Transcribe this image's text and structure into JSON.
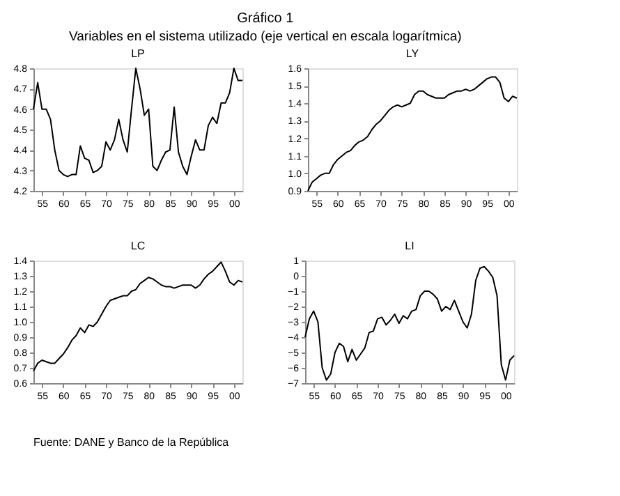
{
  "chart_data": [
    {
      "type": "other",
      "title": "Gráfico 1",
      "subtitle": "Variables en el sistema utilizado (eje vertical en escala logarítmica)"
    },
    {
      "type": "line",
      "title": "LP",
      "x": [
        1953,
        1954,
        1955,
        1956,
        1957,
        1958,
        1959,
        1960,
        1961,
        1962,
        1963,
        1964,
        1965,
        1966,
        1967,
        1968,
        1969,
        1970,
        1971,
        1972,
        1973,
        1974,
        1975,
        1976,
        1977,
        1978,
        1979,
        1980,
        1981,
        1982,
        1983,
        1984,
        1985,
        1986,
        1987,
        1988,
        1989,
        1990,
        1991,
        1992,
        1993,
        1994,
        1995,
        1996,
        1997,
        1998,
        1999,
        2000,
        2001,
        2002
      ],
      "series": [
        {
          "color": "#000000",
          "values": [
            4.6,
            4.73,
            4.6,
            4.6,
            4.55,
            4.4,
            4.3,
            4.28,
            4.27,
            4.28,
            4.28,
            4.42,
            4.36,
            4.35,
            4.29,
            4.3,
            4.32,
            4.44,
            4.4,
            4.45,
            4.55,
            4.45,
            4.39,
            4.6,
            4.8,
            4.7,
            4.57,
            4.6,
            4.32,
            4.3,
            4.35,
            4.39,
            4.4,
            4.61,
            4.39,
            4.32,
            4.28,
            4.37,
            4.45,
            4.4,
            4.4,
            4.52,
            4.56,
            4.53,
            4.63,
            4.63,
            4.68,
            4.8,
            4.74,
            4.74
          ]
        }
      ],
      "xlim": [
        1953,
        2002
      ],
      "xticks": [
        {
          "value": 1955,
          "label": "55"
        },
        {
          "value": 1960,
          "label": "60"
        },
        {
          "value": 1965,
          "label": "65"
        },
        {
          "value": 1970,
          "label": "70"
        },
        {
          "value": 1975,
          "label": "75"
        },
        {
          "value": 1980,
          "label": "80"
        },
        {
          "value": 1985,
          "label": "85"
        },
        {
          "value": 1990,
          "label": "90"
        },
        {
          "value": 1995,
          "label": "95"
        },
        {
          "value": 2000,
          "label": "00"
        }
      ],
      "ylim": [
        4.2,
        4.8
      ],
      "yticks": [
        4.2,
        4.3,
        4.4,
        4.5,
        4.6,
        4.7,
        4.8
      ],
      "grid": false
    },
    {
      "type": "line",
      "title": "LY",
      "x": [
        1953,
        1954,
        1955,
        1956,
        1957,
        1958,
        1959,
        1960,
        1961,
        1962,
        1963,
        1964,
        1965,
        1966,
        1967,
        1968,
        1969,
        1970,
        1971,
        1972,
        1973,
        1974,
        1975,
        1976,
        1977,
        1978,
        1979,
        1980,
        1981,
        1982,
        1983,
        1984,
        1985,
        1986,
        1987,
        1988,
        1989,
        1990,
        1991,
        1992,
        1993,
        1994,
        1995,
        1996,
        1997,
        1998,
        1999,
        2000,
        2001,
        2002
      ],
      "series": [
        {
          "color": "#000000",
          "values": [
            0.9,
            0.95,
            0.97,
            0.99,
            1.0,
            1.0,
            1.05,
            1.08,
            1.1,
            1.12,
            1.13,
            1.16,
            1.18,
            1.19,
            1.21,
            1.25,
            1.28,
            1.3,
            1.33,
            1.36,
            1.38,
            1.39,
            1.38,
            1.39,
            1.4,
            1.45,
            1.47,
            1.47,
            1.45,
            1.44,
            1.43,
            1.43,
            1.43,
            1.45,
            1.46,
            1.47,
            1.47,
            1.48,
            1.47,
            1.48,
            1.5,
            1.52,
            1.54,
            1.55,
            1.55,
            1.52,
            1.43,
            1.41,
            1.44,
            1.43
          ]
        }
      ],
      "xlim": [
        1953,
        2002
      ],
      "xticks": [
        {
          "value": 1955,
          "label": "55"
        },
        {
          "value": 1960,
          "label": "60"
        },
        {
          "value": 1965,
          "label": "65"
        },
        {
          "value": 1970,
          "label": "70"
        },
        {
          "value": 1975,
          "label": "75"
        },
        {
          "value": 1980,
          "label": "80"
        },
        {
          "value": 1985,
          "label": "85"
        },
        {
          "value": 1990,
          "label": "90"
        },
        {
          "value": 1995,
          "label": "95"
        },
        {
          "value": 2000,
          "label": "00"
        }
      ],
      "ylim": [
        0.9,
        1.6
      ],
      "yticks": [
        0.9,
        {
          "value": 1,
          "label": "1.0"
        },
        1.1,
        1.2,
        1.3,
        1.4,
        1.5,
        1.6
      ],
      "grid": false
    },
    {
      "type": "line",
      "title": "LC",
      "x": [
        1953,
        1954,
        1955,
        1956,
        1957,
        1958,
        1959,
        1960,
        1961,
        1962,
        1963,
        1964,
        1965,
        1966,
        1967,
        1968,
        1969,
        1970,
        1971,
        1972,
        1973,
        1974,
        1975,
        1976,
        1977,
        1978,
        1979,
        1980,
        1981,
        1982,
        1983,
        1984,
        1985,
        1986,
        1987,
        1988,
        1989,
        1990,
        1991,
        1992,
        1993,
        1994,
        1995,
        1996,
        1997,
        1998,
        1999,
        2000,
        2001,
        2002
      ],
      "series": [
        {
          "color": "#000000",
          "values": [
            0.68,
            0.73,
            0.75,
            0.74,
            0.73,
            0.73,
            0.76,
            0.79,
            0.83,
            0.88,
            0.91,
            0.96,
            0.93,
            0.98,
            0.97,
            1.0,
            1.05,
            1.1,
            1.14,
            1.15,
            1.16,
            1.17,
            1.17,
            1.2,
            1.21,
            1.25,
            1.27,
            1.29,
            1.28,
            1.26,
            1.24,
            1.23,
            1.23,
            1.22,
            1.23,
            1.24,
            1.24,
            1.24,
            1.22,
            1.24,
            1.28,
            1.31,
            1.33,
            1.36,
            1.39,
            1.33,
            1.26,
            1.24,
            1.27,
            1.26
          ]
        }
      ],
      "xlim": [
        1953,
        2002
      ],
      "xticks": [
        {
          "value": 1955,
          "label": "55"
        },
        {
          "value": 1960,
          "label": "60"
        },
        {
          "value": 1965,
          "label": "65"
        },
        {
          "value": 1970,
          "label": "70"
        },
        {
          "value": 1975,
          "label": "75"
        },
        {
          "value": 1980,
          "label": "80"
        },
        {
          "value": 1985,
          "label": "85"
        },
        {
          "value": 1990,
          "label": "90"
        },
        {
          "value": 1995,
          "label": "95"
        },
        {
          "value": 2000,
          "label": "00"
        }
      ],
      "ylim": [
        0.6,
        1.4
      ],
      "yticks": [
        0.6,
        0.7,
        0.8,
        0.9,
        {
          "value": 1,
          "label": "1.0"
        },
        1.1,
        1.2,
        1.3,
        1.4
      ],
      "grid": false
    },
    {
      "type": "line",
      "title": "LI",
      "x": [
        1953,
        1954,
        1955,
        1956,
        1957,
        1958,
        1959,
        1960,
        1961,
        1962,
        1963,
        1964,
        1965,
        1966,
        1967,
        1968,
        1969,
        1970,
        1971,
        1972,
        1973,
        1974,
        1975,
        1976,
        1977,
        1978,
        1979,
        1980,
        1981,
        1982,
        1983,
        1984,
        1985,
        1986,
        1987,
        1988,
        1989,
        1990,
        1991,
        1992,
        1993,
        1994,
        1995,
        1996,
        1997,
        1998,
        1999,
        2000,
        2001,
        2002
      ],
      "series": [
        {
          "color": "#000000",
          "values": [
            -4.0,
            -2.8,
            -2.3,
            -3.0,
            -6.0,
            -6.8,
            -6.4,
            -5.0,
            -4.4,
            -4.6,
            -5.6,
            -4.8,
            -5.5,
            -5.1,
            -4.7,
            -3.7,
            -3.6,
            -2.8,
            -2.7,
            -3.2,
            -2.9,
            -2.5,
            -3.1,
            -2.6,
            -2.8,
            -2.3,
            -2.2,
            -1.3,
            -1.0,
            -1.0,
            -1.2,
            -1.5,
            -2.3,
            -2.0,
            -2.2,
            -1.6,
            -2.3,
            -3.0,
            -3.4,
            -2.5,
            -0.3,
            0.5,
            0.6,
            0.3,
            -0.1,
            -1.3,
            -5.8,
            -6.8,
            -5.5,
            -5.2
          ]
        }
      ],
      "xlim": [
        1953,
        2002
      ],
      "xticks": [
        {
          "value": 1955,
          "label": "55"
        },
        {
          "value": 1960,
          "label": "60"
        },
        {
          "value": 1965,
          "label": "65"
        },
        {
          "value": 1970,
          "label": "70"
        },
        {
          "value": 1975,
          "label": "75"
        },
        {
          "value": 1980,
          "label": "80"
        },
        {
          "value": 1985,
          "label": "85"
        },
        {
          "value": 1990,
          "label": "90"
        },
        {
          "value": 1995,
          "label": "95"
        },
        {
          "value": 2000,
          "label": "00"
        }
      ],
      "ylim": [
        -7,
        1
      ],
      "yticks": [
        -7,
        -6,
        -5,
        -4,
        -3,
        -2,
        -1,
        0,
        1
      ],
      "grid": false
    },
    {
      "type": "other",
      "annotations": [
        "Fuente: DANE y Banco de la República"
      ]
    }
  ]
}
